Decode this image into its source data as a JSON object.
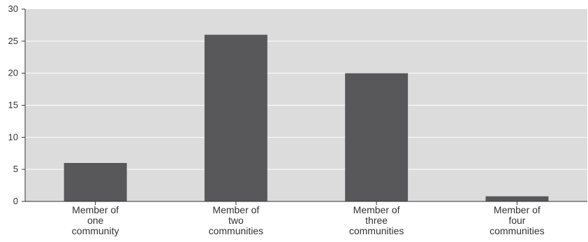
{
  "chart_data": {
    "type": "bar",
    "title": "",
    "xlabel": "",
    "ylabel": "",
    "categories": [
      [
        "Member of",
        "one",
        "community"
      ],
      [
        "Member of",
        "two",
        "communities"
      ],
      [
        "Member of",
        "three",
        "communities"
      ],
      [
        "Member of",
        "four",
        "communities"
      ]
    ],
    "values": [
      6,
      26,
      20,
      0.8
    ],
    "ylim": [
      0,
      30
    ],
    "yticks": [
      "0",
      "5",
      "10",
      "15",
      "20",
      "25",
      "30"
    ],
    "grid": true,
    "legend": "none",
    "colors": {
      "bar": "#58585a",
      "plot_background": "#dcdcdd",
      "gridline": "#ffffff",
      "axis": "#333333"
    }
  }
}
